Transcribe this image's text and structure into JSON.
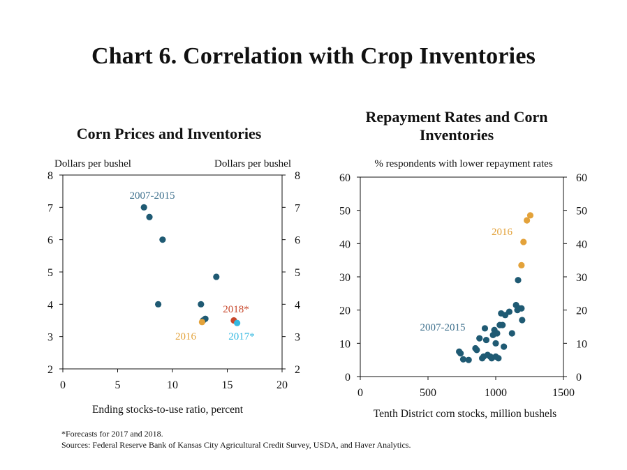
{
  "title": "Chart 6. Correlation with Crop Inventories",
  "footnotes": [
    "*Forecasts for 2017 and 2018.",
    "Sources: Federal Reserve Bank of Kansas City Agricultural Credit Survey, USDA, and Haver Analytics."
  ],
  "colors": {
    "navy": "#1f5a73",
    "gold": "#e3a23a",
    "red": "#c8472b",
    "cyan": "#33b8e0",
    "navy_label": "#3c6f8c"
  },
  "chart_data": [
    {
      "type": "scatter",
      "title": "Corn Prices and Inventories",
      "xlabel": "Ending stocks-to-use ratio, percent",
      "ylabel_left": "Dollars per bushel",
      "ylabel_right": "Dollars per bushel",
      "xlim": [
        0,
        20
      ],
      "ylim": [
        2,
        8
      ],
      "xticks": [
        "0",
        "5",
        "10",
        "15",
        "20"
      ],
      "yticks": [
        "2",
        "3",
        "4",
        "5",
        "6",
        "7",
        "8"
      ],
      "grid": false,
      "series": [
        {
          "name": "2007-2015",
          "color": "#1f5a73",
          "points": [
            [
              7.4,
              7.0
            ],
            [
              7.9,
              6.7
            ],
            [
              9.1,
              6.0
            ],
            [
              14.0,
              4.85
            ],
            [
              8.7,
              4.0
            ],
            [
              12.6,
              4.0
            ],
            [
              13.0,
              3.55
            ],
            [
              12.8,
              3.5
            ]
          ]
        },
        {
          "name": "2016",
          "color": "#e3a23a",
          "points": [
            [
              12.7,
              3.45
            ]
          ]
        },
        {
          "name": "2018*",
          "color": "#c8472b",
          "points": [
            [
              15.6,
              3.5
            ]
          ]
        },
        {
          "name": "2017*",
          "color": "#33b8e0",
          "points": [
            [
              15.9,
              3.42
            ]
          ]
        }
      ]
    },
    {
      "type": "scatter",
      "title": "Repayment Rates and Corn Inventories",
      "xlabel": "Tenth District corn stocks, million bushels",
      "ylabel": "% respondents with lower repayment rates",
      "xlim": [
        0,
        1500
      ],
      "ylim": [
        0,
        60
      ],
      "xticks": [
        "0",
        "500",
        "1000",
        "1500"
      ],
      "yticks": [
        "0",
        "10",
        "20",
        "30",
        "40",
        "50",
        "60"
      ],
      "grid": false,
      "series": [
        {
          "name": "2007-2015",
          "color": "#1f5a73",
          "points": [
            [
              730,
              7.5
            ],
            [
              740,
              7.0
            ],
            [
              760,
              5.2
            ],
            [
              800,
              5.0
            ],
            [
              850,
              8.5
            ],
            [
              860,
              8.0
            ],
            [
              880,
              11.5
            ],
            [
              900,
              5.5
            ],
            [
              910,
              6.0
            ],
            [
              920,
              14.5
            ],
            [
              930,
              11.0
            ],
            [
              940,
              6.5
            ],
            [
              960,
              6.0
            ],
            [
              970,
              5.5
            ],
            [
              980,
              12.5
            ],
            [
              990,
              14.0
            ],
            [
              1000,
              10.0
            ],
            [
              1000,
              6.0
            ],
            [
              1010,
              13.0
            ],
            [
              1020,
              5.5
            ],
            [
              1030,
              15.5
            ],
            [
              1040,
              19.0
            ],
            [
              1050,
              15.5
            ],
            [
              1060,
              9.0
            ],
            [
              1070,
              18.5
            ],
            [
              1100,
              19.5
            ],
            [
              1120,
              13.0
            ],
            [
              1150,
              21.5
            ],
            [
              1160,
              20.0
            ],
            [
              1175,
              20.5
            ],
            [
              1190,
              20.5
            ],
            [
              1195,
              17.0
            ],
            [
              1165,
              29.0
            ]
          ]
        },
        {
          "name": "2016",
          "color": "#e3a23a",
          "points": [
            [
              1190,
              33.5
            ],
            [
              1205,
              40.5
            ],
            [
              1230,
              47.0
            ],
            [
              1255,
              48.5
            ]
          ]
        }
      ]
    }
  ],
  "annotations": {
    "left": {
      "s2007": "2007-2015",
      "s2016": "2016",
      "s2018": "2018*",
      "s2017": "2017*"
    },
    "right": {
      "s2007": "2007-2015",
      "s2016": "2016"
    }
  }
}
